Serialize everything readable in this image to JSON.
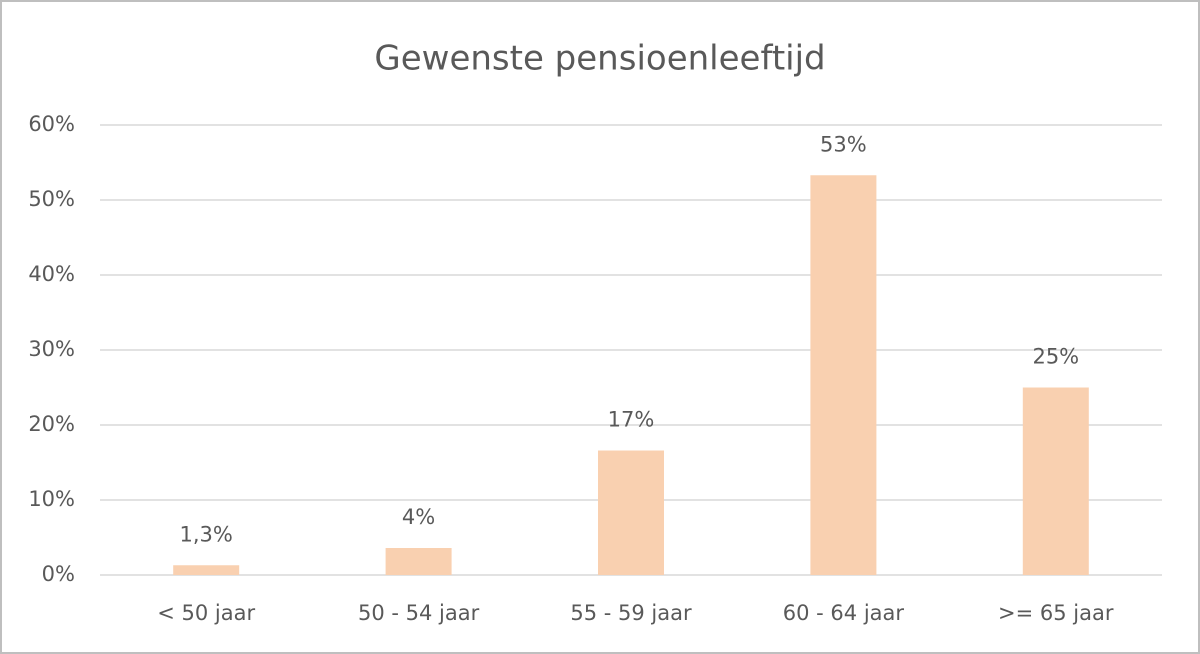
{
  "chart_data": {
    "type": "bar",
    "title": "Gewenste pensioenleeftijd",
    "categories": [
      "< 50 jaar",
      "50 - 54 jaar",
      "55 - 59 jaar",
      "60 - 64 jaar",
      ">= 65 jaar"
    ],
    "values": [
      1.3,
      3.6,
      16.6,
      53.3,
      25
    ],
    "value_labels": [
      "1,3%",
      "4%",
      "17%",
      "53%",
      "25%"
    ],
    "color": "#f9d0b0",
    "ylim": [
      0,
      60
    ],
    "yticks": [
      {
        "value": 0,
        "label": "0%"
      },
      {
        "value": 10,
        "label": "10%"
      },
      {
        "value": 20,
        "label": "20%"
      },
      {
        "value": 30,
        "label": "30%"
      },
      {
        "value": 40,
        "label": "40%"
      },
      {
        "value": 50,
        "label": "50%"
      },
      {
        "value": 60,
        "label": "60%"
      }
    ],
    "grid": true
  }
}
